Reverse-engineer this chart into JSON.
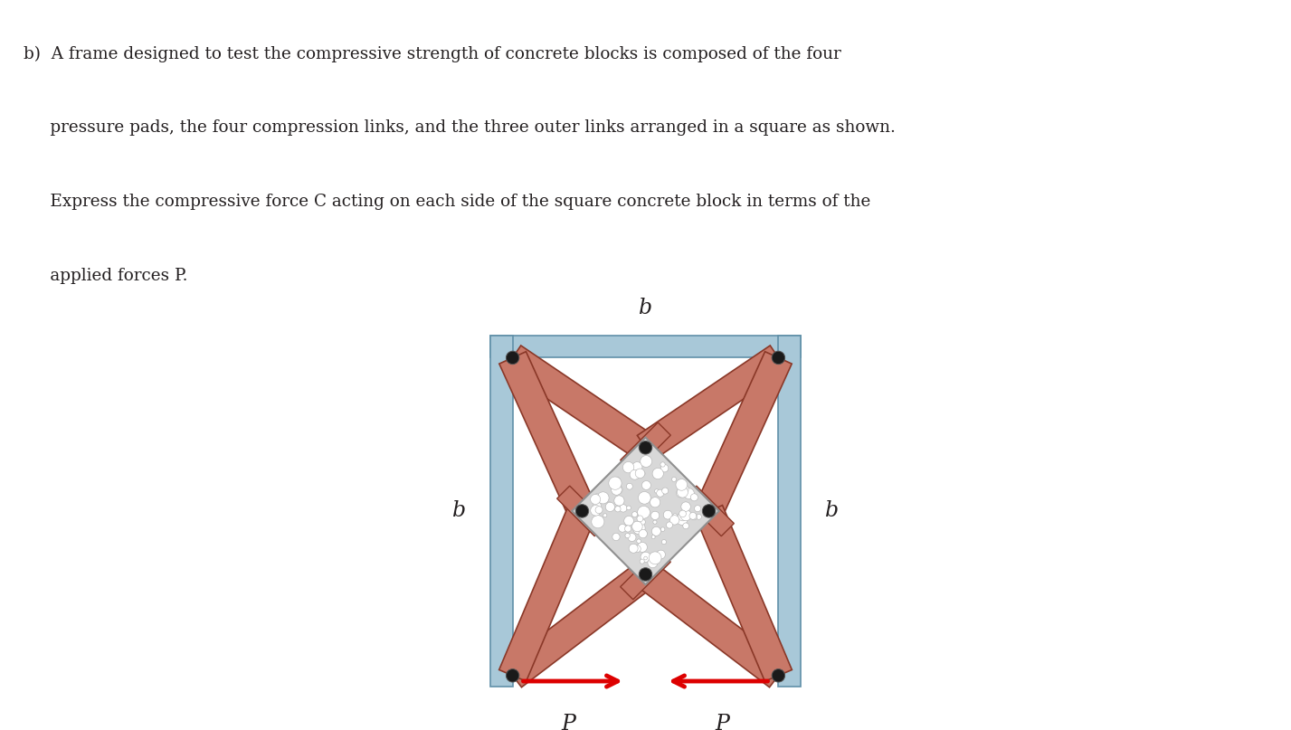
{
  "bg_color": "#ffffff",
  "text_color": "#231f20",
  "frame_color": "#a8c8d8",
  "frame_edge_color": "#6090a8",
  "link_color": "#c87868",
  "link_edge_color": "#8a3828",
  "concrete_color": "#d8d8d8",
  "concrete_edge_color": "#909090",
  "arrow_color": "#dd0000",
  "pin_color": "#1a1a1a",
  "text_lines": [
    "b)  A frame designed to test the compressive strength of concrete blocks is composed of the four",
    "     pressure pads, the four compression links, and the three outer links arranged in a square as shown.",
    "     Express the compressive force C acting on each side of the square concrete block in terms of the",
    "     applied forces P."
  ]
}
